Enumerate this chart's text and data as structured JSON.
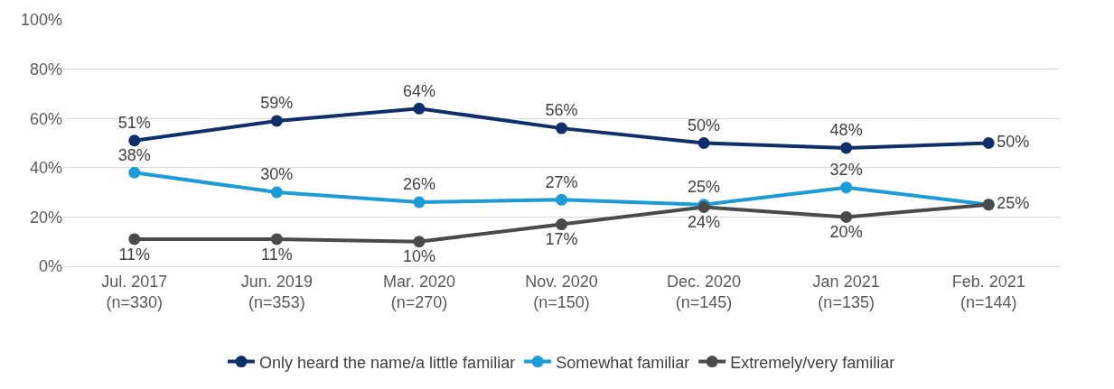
{
  "chart_data": {
    "type": "line",
    "categories": [
      "Jul. 2017\n(n=330)",
      "Jun. 2019\n(n=353)",
      "Mar. 2020\n(n=270)",
      "Nov. 2020\n(n=150)",
      "Dec. 2020\n(n=145)",
      "Jan 2021\n(n=135)",
      "Feb. 2021\n(n=144)"
    ],
    "series": [
      {
        "name": "Only heard the name/a little familiar",
        "color": "#0f2f6b",
        "values": [
          51,
          59,
          64,
          56,
          50,
          48,
          50
        ],
        "value_labels": [
          "51%",
          "59%",
          "64%",
          "56%",
          "50%",
          "48%",
          "50%"
        ]
      },
      {
        "name": "Somewhat familiar",
        "color": "#1b9bd7",
        "values": [
          38,
          30,
          26,
          27,
          25,
          32,
          25
        ],
        "value_labels": [
          "38%",
          "30%",
          "26%",
          "27%",
          "25%",
          "32%",
          null
        ]
      },
      {
        "name": "Extremely/very familiar",
        "color": "#4a4a4a",
        "values": [
          11,
          11,
          10,
          17,
          24,
          20,
          25
        ],
        "value_labels": [
          "11%",
          "11%",
          "10%",
          "17%",
          "24%",
          "20%",
          "25%"
        ]
      }
    ],
    "ylim": [
      0,
      100
    ],
    "yticks": [
      {
        "value": 0,
        "label": "0%"
      },
      {
        "value": 20,
        "label": "20%"
      },
      {
        "value": 40,
        "label": "40%"
      },
      {
        "value": 60,
        "label": "60%"
      },
      {
        "value": 80,
        "label": "80%"
      },
      {
        "value": 100,
        "label": "100%"
      }
    ],
    "grid": "y",
    "legend": "bottom",
    "marker": "circle",
    "line_style": "solid"
  }
}
